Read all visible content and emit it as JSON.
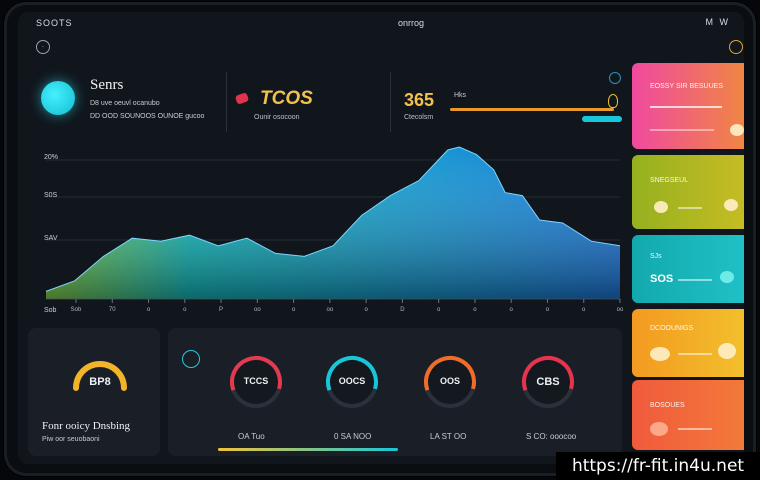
{
  "topbar": {
    "left": "SOOTS",
    "center": "onrrog",
    "right": "M W"
  },
  "brand": {
    "title": "Senrs",
    "sub1": "D8 uve oeuvl ocanubo",
    "sub2": "DD OOD SOUNOOS OUNOE gucoo"
  },
  "stat1": {
    "value": "TCOS",
    "label": "Ounir osocoon"
  },
  "stat2": {
    "value": "365",
    "unit": "Hks",
    "label": "Ctecolsm"
  },
  "chart_data": {
    "type": "area",
    "title": "",
    "y_tick_labels": [
      "20%",
      "S0S",
      "SAV"
    ],
    "x_tick_labels": [
      "Sob",
      "70",
      "o",
      "o",
      "P",
      "oo",
      "o",
      "oo",
      "o",
      "D",
      "o",
      "o",
      "o",
      "o",
      "o",
      "oo"
    ],
    "bottom_label": "Sob",
    "x": [
      0,
      0.05,
      0.1,
      0.15,
      0.2,
      0.25,
      0.3,
      0.35,
      0.4,
      0.45,
      0.5,
      0.55,
      0.6,
      0.65,
      0.7,
      0.72,
      0.75,
      0.78,
      0.8,
      0.83,
      0.86,
      0.9,
      0.95,
      1.0
    ],
    "values": [
      5,
      12,
      28,
      40,
      38,
      42,
      35,
      40,
      30,
      28,
      35,
      55,
      68,
      78,
      98,
      100,
      95,
      85,
      70,
      68,
      52,
      50,
      38,
      35
    ],
    "ylim": [
      0,
      100
    ],
    "colors": {
      "start": "#8fe04a",
      "mid": "#10c6c9",
      "end": "#1a7de8"
    }
  },
  "cards": [
    {
      "title": "EOSSY SIR BESUUES",
      "value": "",
      "colors": [
        "#f0499f",
        "#f08c3a"
      ]
    },
    {
      "title": "SNEGSEUL",
      "value": "",
      "colors": [
        "#95b11f",
        "#cbbd24"
      ]
    },
    {
      "title": "SJs",
      "value": "SOS",
      "colors": [
        "#12a9ad",
        "#21c3c9"
      ]
    },
    {
      "title": "DCOOUNIGS",
      "value": "",
      "colors": [
        "#f39a21",
        "#f3c32d"
      ]
    },
    {
      "title": "BOSOUES",
      "value": "",
      "colors": [
        "#f05a3c",
        "#f37d3a"
      ]
    }
  ],
  "left_panel": {
    "gauge": "BP8",
    "title": "Fonr ooicy Dnsbing",
    "sub": "Piw oor seuobaoni"
  },
  "gauges": [
    {
      "value": "TCCS",
      "caption": "OA Tuo"
    },
    {
      "value": "OOCS",
      "caption": "0 SA NOO"
    },
    {
      "value": "OOS",
      "caption": "LA ST OO"
    },
    {
      "value": "CBS",
      "caption": "S CO: ooocoo"
    }
  ],
  "gauge_colors": [
    "#e23a4e",
    "#18c6d8",
    "#f06c2a",
    "#e8334d"
  ],
  "watermark": "https://fr-fit.in4u.net"
}
